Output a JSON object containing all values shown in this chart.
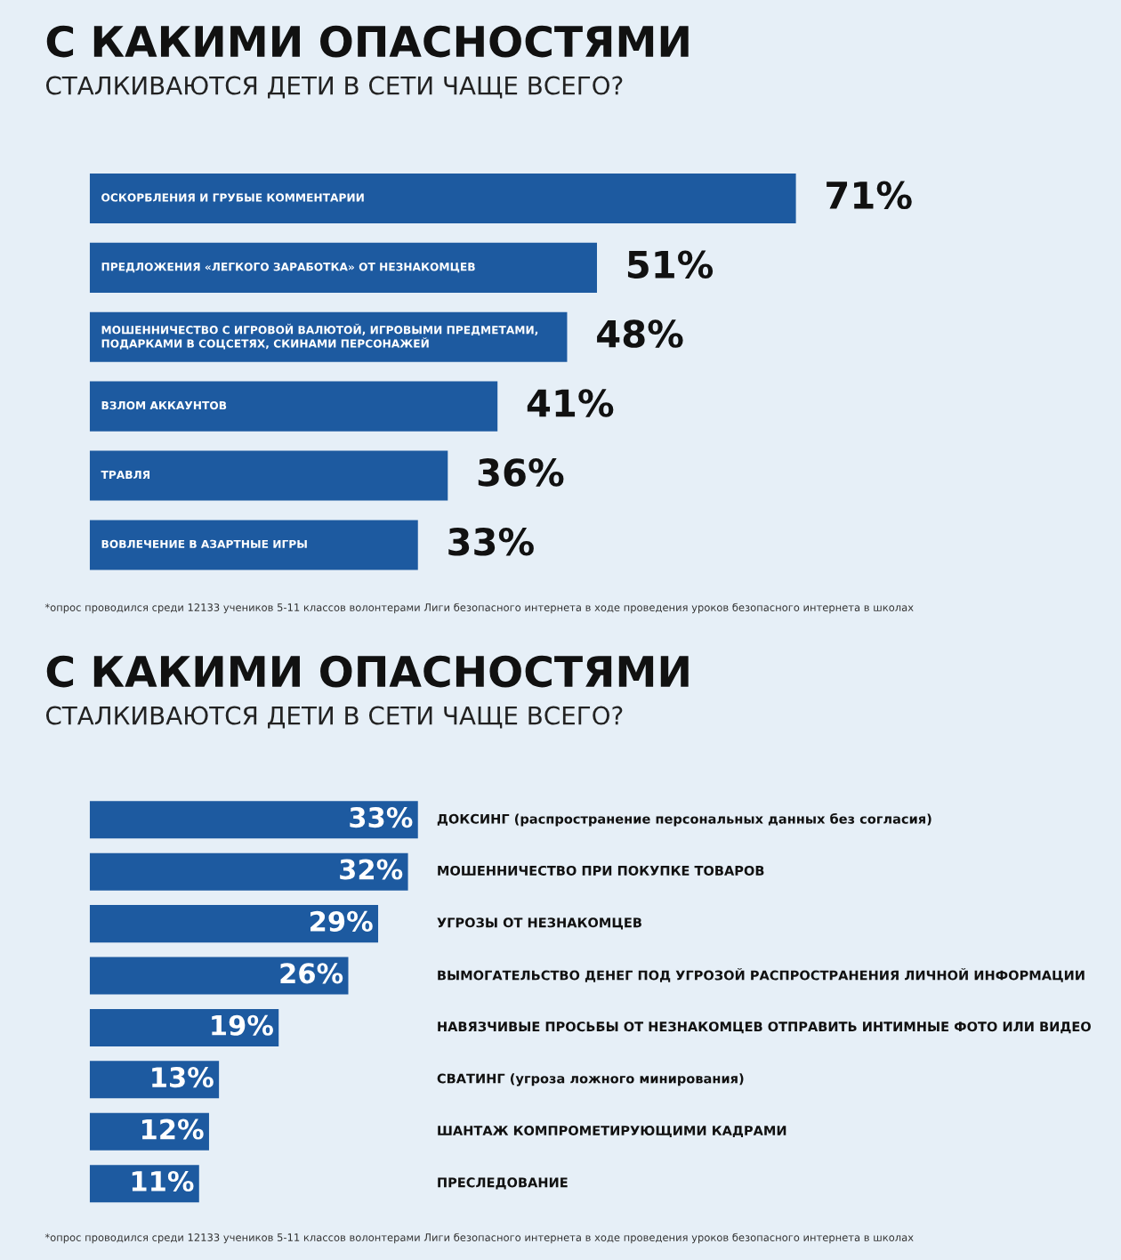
{
  "chart_data": [
    {
      "type": "bar",
      "orientation": "horizontal",
      "title": "С КАКИМИ ОПАСНОСТЯМИ",
      "subtitle": "СТАЛКИВАЮТСЯ ДЕТИ В СЕТИ ЧАЩЕ ВСЕГО?",
      "categories": [
        "ОСКОРБЛЕНИЯ И ГРУБЫЕ КОММЕНТАРИИ",
        "ПРЕДЛОЖЕНИЯ «ЛЕГКОГО ЗАРАБОТКА» ОТ НЕЗНАКОМЦЕВ",
        "МОШЕННИЧЕСТВО С ИГРОВОЙ ВАЛЮТОЙ, ИГРОВЫМИ ПРЕДМЕТАМИ,\nПОДАРКАМИ В СОЦСЕТЯХ, СКИНАМИ ПЕРСОНАЖЕЙ",
        "ВЗЛОМ АККАУНТОВ",
        "ТРАВЛЯ",
        "ВОВЛЕЧЕНИЕ В АЗАРТНЫЕ ИГРЫ"
      ],
      "values": [
        71,
        51,
        48,
        41,
        36,
        33
      ],
      "color": "#1d5aa0",
      "value_labels": [
        "71%",
        "51%",
        "48%",
        "41%",
        "36%",
        "33%"
      ],
      "annotations": [
        "*опрос проводился среди 12133 учеников 5-11 классов волонтерами Лиги безопасного интернета в ходе проведения уроков безопасного интернета в школах"
      ]
    },
    {
      "type": "bar",
      "orientation": "horizontal",
      "title": "С КАКИМИ ОПАСНОСТЯМИ",
      "subtitle": "СТАЛКИВАЮТСЯ ДЕТИ В СЕТИ ЧАЩЕ ВСЕГО?",
      "categories": [
        "ДОКСИНГ (распространение персональных данных без согласия)",
        "МОШЕННИЧЕСТВО ПРИ ПОКУПКЕ ТОВАРОВ",
        "УГРОЗЫ ОТ НЕЗНАКОМЦЕВ",
        "ВЫМОГАТЕЛЬСТВО ДЕНЕГ ПОД УГРОЗОЙ РАСПРОСТРАНЕНИЯ ЛИЧНОЙ ИНФОРМАЦИИ",
        "НАВЯЗЧИВЫЕ ПРОСЬБЫ ОТ НЕЗНАКОМЦЕВ ОТПРАВИТЬ ИНТИМНЫЕ ФОТО ИЛИ ВИДЕО",
        "СВАТИНГ (угроза ложного минирования)",
        "ШАНТАЖ КОМПРОМЕТИРУЮЩИМИ КАДРАМИ",
        "ПРЕСЛЕДОВАНИЕ"
      ],
      "values": [
        33,
        32,
        29,
        26,
        19,
        13,
        12,
        11
      ],
      "color": "#1d5aa0",
      "value_labels": [
        "33%",
        "32%",
        "29%",
        "26%",
        "19%",
        "13%",
        "12%",
        "11%"
      ],
      "annotations": [
        "*опрос проводился среди 12133 учеников 5-11 классов волонтерами Лиги безопасного интернета в ходе проведения уроков безопасного интернета в школах"
      ]
    }
  ]
}
